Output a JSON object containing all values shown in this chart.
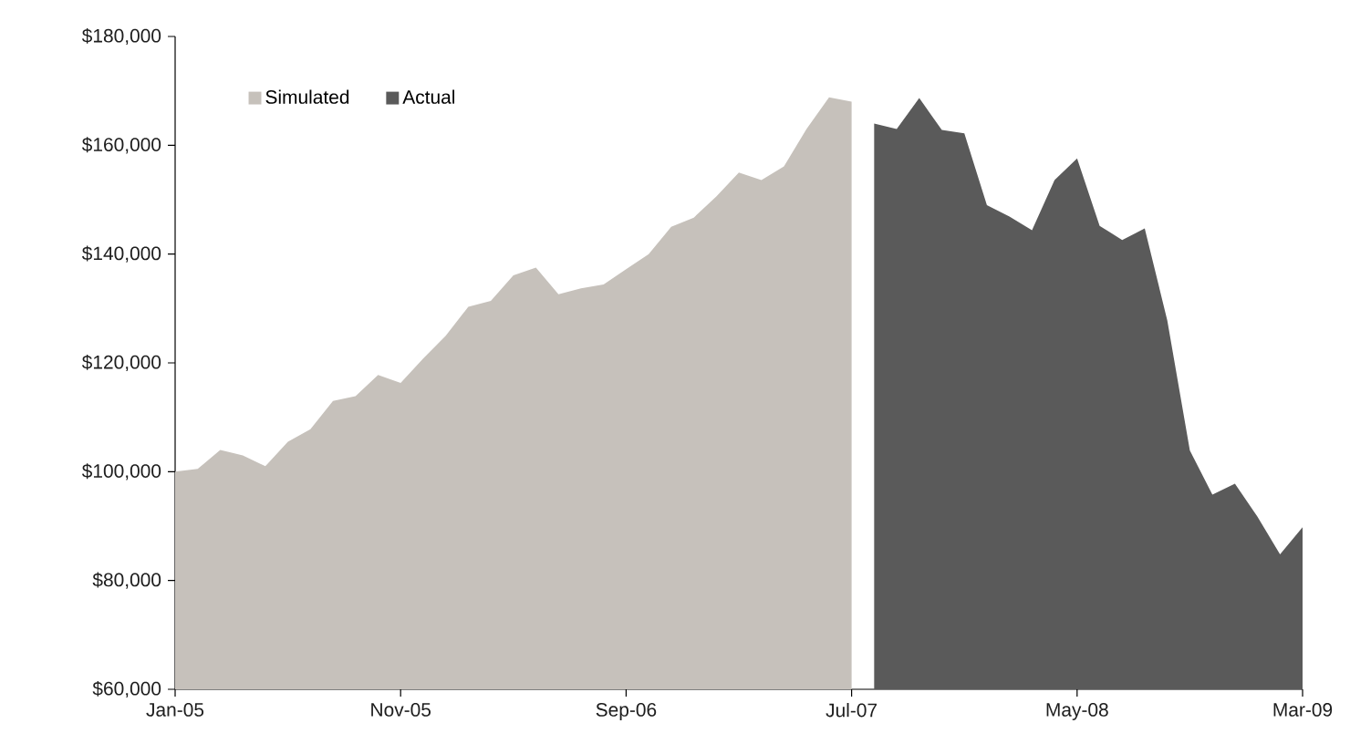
{
  "chart_data": {
    "type": "area",
    "x": [
      "2005-01",
      "2005-02",
      "2005-03",
      "2005-04",
      "2005-05",
      "2005-06",
      "2005-07",
      "2005-08",
      "2005-09",
      "2005-10",
      "2005-11",
      "2005-12",
      "2006-01",
      "2006-02",
      "2006-03",
      "2006-04",
      "2006-05",
      "2006-06",
      "2006-07",
      "2006-08",
      "2006-09",
      "2006-10",
      "2006-11",
      "2006-12",
      "2007-01",
      "2007-02",
      "2007-03",
      "2007-04",
      "2007-05",
      "2007-06",
      "2007-07",
      "2007-08",
      "2007-09",
      "2007-10",
      "2007-11",
      "2007-12",
      "2008-01",
      "2008-02",
      "2008-03",
      "2008-04",
      "2008-05",
      "2008-06",
      "2008-07",
      "2008-08",
      "2008-09",
      "2008-10",
      "2008-11",
      "2008-12",
      "2009-01",
      "2009-02",
      "2009-03"
    ],
    "series": [
      {
        "name": "Simulated",
        "color": "#c6c1bb",
        "values": [
          100000,
          100500,
          104000,
          103000,
          101000,
          105500,
          107800,
          113000,
          113900,
          117800,
          116300,
          120800,
          125000,
          130300,
          131400,
          136100,
          137500,
          132600,
          133700,
          134400,
          137200,
          140000,
          145000,
          146700,
          150600,
          155000,
          153600,
          156100,
          163000,
          168800,
          168000,
          null,
          null,
          null,
          null,
          null,
          null,
          null,
          null,
          null,
          null,
          null,
          null,
          null,
          null,
          null,
          null,
          null,
          null,
          null,
          null
        ]
      },
      {
        "name": "Actual",
        "color": "#5a5a5a",
        "values": [
          null,
          null,
          null,
          null,
          null,
          null,
          null,
          null,
          null,
          null,
          null,
          null,
          null,
          null,
          null,
          null,
          null,
          null,
          null,
          null,
          null,
          null,
          null,
          null,
          null,
          null,
          null,
          null,
          null,
          null,
          null,
          164000,
          163000,
          168700,
          162800,
          162200,
          149000,
          146900,
          144400,
          153600,
          157600,
          145200,
          142600,
          144700,
          127800,
          103900,
          95800,
          97800,
          91700,
          84800,
          89800
        ]
      }
    ],
    "xlim": [
      "2005-01",
      "2009-03"
    ],
    "xticks": [
      {
        "value": "2005-01",
        "label": "Jan-05"
      },
      {
        "value": "2005-11",
        "label": "Nov-05"
      },
      {
        "value": "2006-09",
        "label": "Sep-06"
      },
      {
        "value": "2007-07",
        "label": "Jul-07"
      },
      {
        "value": "2008-05",
        "label": "May-08"
      },
      {
        "value": "2009-03",
        "label": "Mar-09"
      }
    ],
    "ylim": [
      60000,
      180000
    ],
    "yticks": [
      {
        "value": 60000,
        "label": "$60,000"
      },
      {
        "value": 80000,
        "label": "$80,000"
      },
      {
        "value": 100000,
        "label": "$100,000"
      },
      {
        "value": 120000,
        "label": "$120,000"
      },
      {
        "value": 140000,
        "label": "$140,000"
      },
      {
        "value": 160000,
        "label": "$160,000"
      },
      {
        "value": 180000,
        "label": "$180,000"
      }
    ],
    "legend": "top left",
    "grid": false
  }
}
